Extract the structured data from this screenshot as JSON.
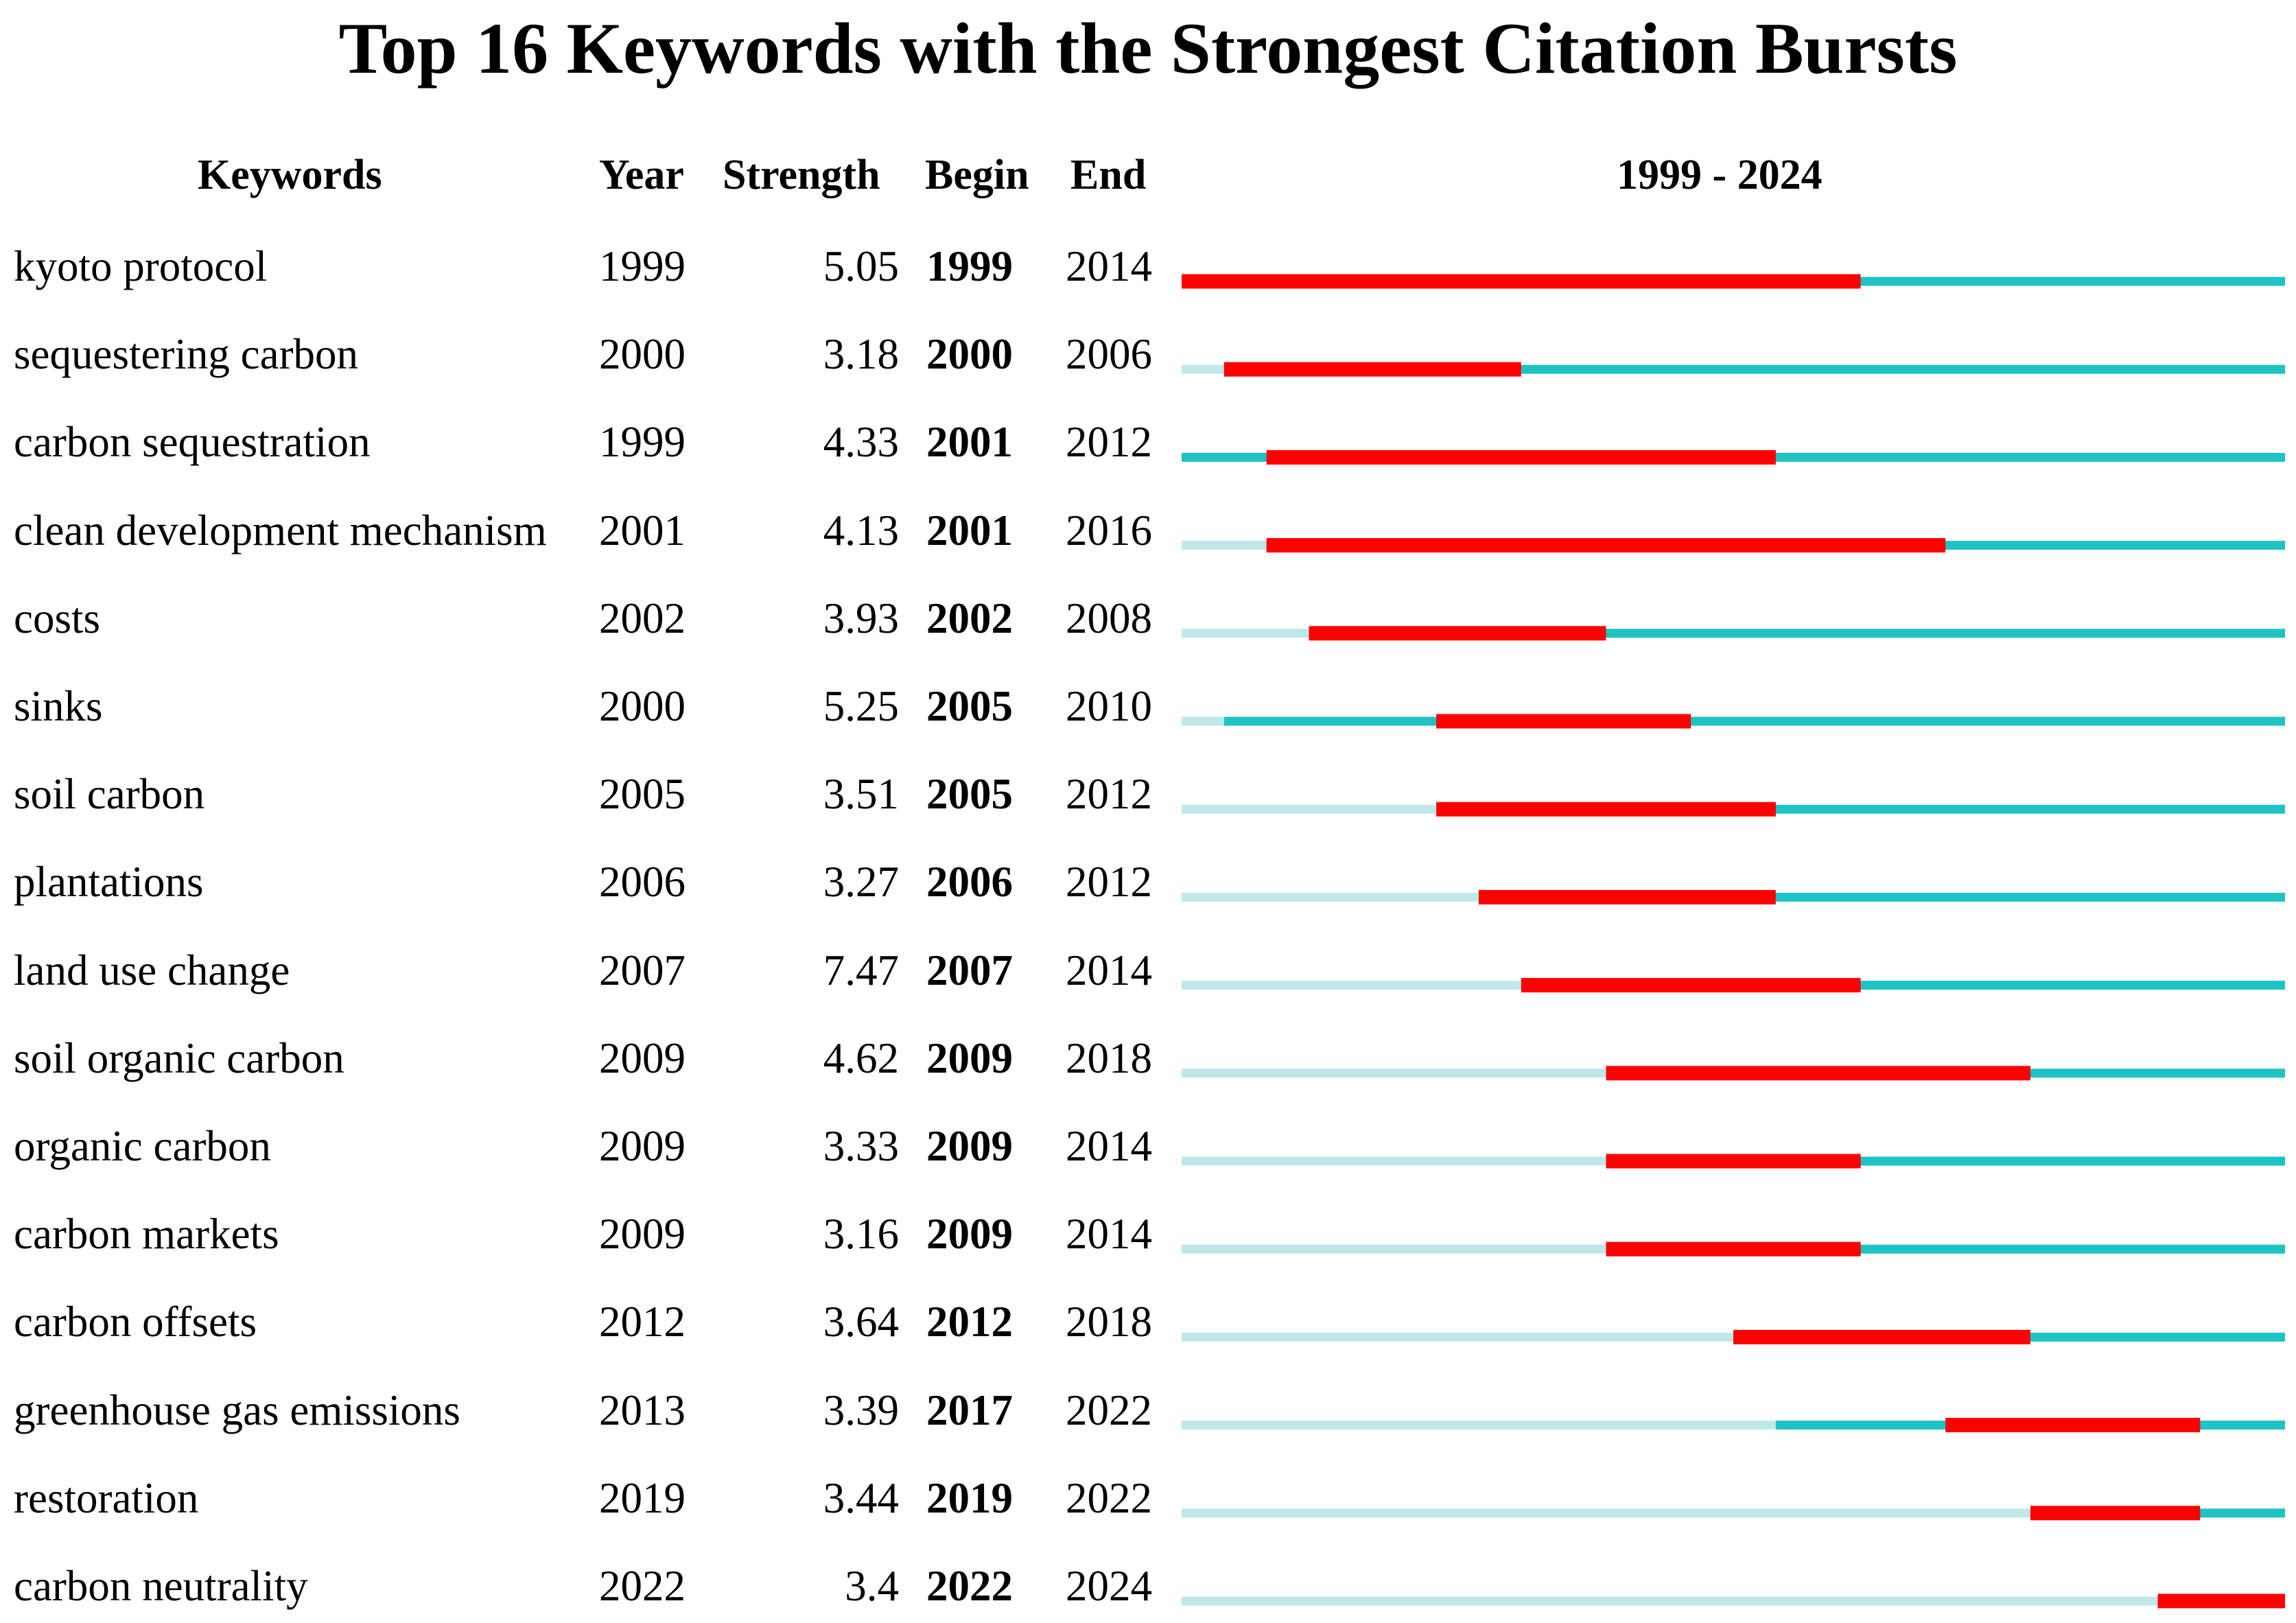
{
  "chart_data": {
    "type": "table",
    "title": "Top 16 Keywords with the Strongest Citation Bursts",
    "columns": {
      "keyword": "Keywords",
      "year": "Year",
      "strength": "Strength",
      "begin": "Begin",
      "end": "End",
      "range": "1999 - 2024"
    },
    "timeline": {
      "start": 1999,
      "end": 2024
    },
    "colors": {
      "burst": "#ff0000",
      "active": "#1ec3c3",
      "inactive": "#bfe8ea"
    },
    "rows": [
      {
        "keyword": "kyoto protocol",
        "year": "1999",
        "strength": "5.05",
        "begin": "1999",
        "end": "2014"
      },
      {
        "keyword": "sequestering carbon",
        "year": "2000",
        "strength": "3.18",
        "begin": "2000",
        "end": "2006"
      },
      {
        "keyword": "carbon sequestration",
        "year": "1999",
        "strength": "4.33",
        "begin": "2001",
        "end": "2012"
      },
      {
        "keyword": "clean development mechanism",
        "year": "2001",
        "strength": "4.13",
        "begin": "2001",
        "end": "2016"
      },
      {
        "keyword": "costs",
        "year": "2002",
        "strength": "3.93",
        "begin": "2002",
        "end": "2008"
      },
      {
        "keyword": "sinks",
        "year": "2000",
        "strength": "5.25",
        "begin": "2005",
        "end": "2010"
      },
      {
        "keyword": "soil carbon",
        "year": "2005",
        "strength": "3.51",
        "begin": "2005",
        "end": "2012"
      },
      {
        "keyword": "plantations",
        "year": "2006",
        "strength": "3.27",
        "begin": "2006",
        "end": "2012"
      },
      {
        "keyword": "land use change",
        "year": "2007",
        "strength": "7.47",
        "begin": "2007",
        "end": "2014"
      },
      {
        "keyword": "soil organic carbon",
        "year": "2009",
        "strength": "4.62",
        "begin": "2009",
        "end": "2018"
      },
      {
        "keyword": "organic carbon",
        "year": "2009",
        "strength": "3.33",
        "begin": "2009",
        "end": "2014"
      },
      {
        "keyword": "carbon markets",
        "year": "2009",
        "strength": "3.16",
        "begin": "2009",
        "end": "2014"
      },
      {
        "keyword": "carbon offsets",
        "year": "2012",
        "strength": "3.64",
        "begin": "2012",
        "end": "2018"
      },
      {
        "keyword": "greenhouse gas emissions",
        "year": "2013",
        "strength": "3.39",
        "begin": "2017",
        "end": "2022"
      },
      {
        "keyword": "restoration",
        "year": "2019",
        "strength": "3.44",
        "begin": "2019",
        "end": "2022"
      },
      {
        "keyword": "carbon neutrality",
        "year": "2022",
        "strength": "3.4",
        "begin": "2022",
        "end": "2024"
      }
    ]
  }
}
